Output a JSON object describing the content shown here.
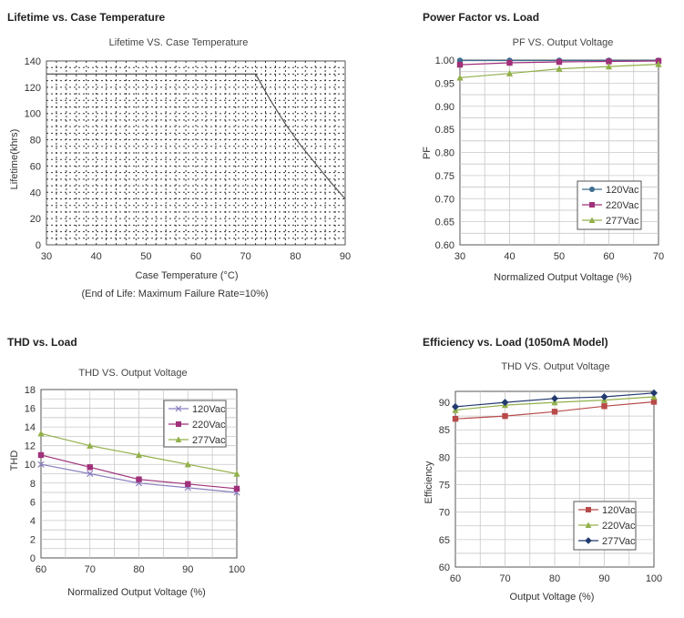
{
  "chart_data": [
    {
      "type": "line",
      "section_title": "Lifetime vs. Case Temperature",
      "title": "Lifetime VS. Case Temperature",
      "xlabel": "Case Temperature (°C)",
      "note": "(End of Life: Maximum Failure Rate=10%)",
      "ylabel": "Lifetime(khrs)",
      "xlim": [
        30,
        90
      ],
      "ylim": [
        0,
        140
      ],
      "x_ticks": [
        30,
        40,
        50,
        60,
        70,
        80,
        90
      ],
      "y_ticks": [
        0,
        20,
        40,
        60,
        80,
        100,
        120,
        140
      ],
      "series": [
        {
          "name": "Lifetime",
          "color": "#555555",
          "x": [
            30,
            72,
            75,
            78,
            81,
            84,
            87,
            90
          ],
          "y": [
            130,
            130,
            110,
            92,
            76,
            62,
            48,
            35
          ]
        }
      ],
      "legend": []
    },
    {
      "type": "line",
      "section_title": "Power Factor vs. Load",
      "title": "PF VS. Output Voltage",
      "xlabel": "Normalized Output Voltage (%)",
      "ylabel": "PF",
      "xlim": [
        30,
        70
      ],
      "ylim": [
        0.6,
        1.0
      ],
      "x_ticks": [
        30,
        40,
        50,
        60,
        70
      ],
      "y_ticks": [
        "0.60",
        "0.65",
        "0.70",
        "0.75",
        "0.80",
        "0.85",
        "0.90",
        "0.95",
        "1.00"
      ],
      "series": [
        {
          "name": "120Vac",
          "color": "#3d6e8f",
          "marker": "circle",
          "x": [
            30,
            40,
            50,
            60,
            70
          ],
          "y": [
            0.999,
            0.999,
            0.999,
            0.999,
            0.999
          ]
        },
        {
          "name": "220Vac",
          "color": "#a0307a",
          "marker": "square",
          "x": [
            30,
            40,
            50,
            60,
            70
          ],
          "y": [
            0.99,
            0.994,
            0.996,
            0.997,
            0.998
          ]
        },
        {
          "name": "277Vac",
          "color": "#92b04a",
          "marker": "triangle",
          "x": [
            30,
            40,
            50,
            60,
            70
          ],
          "y": [
            0.962,
            0.971,
            0.981,
            0.986,
            0.991
          ]
        }
      ],
      "legend": [
        "120Vac",
        "220Vac",
        "277Vac"
      ]
    },
    {
      "type": "line",
      "section_title": "THD vs. Load",
      "title": "THD VS. Output Voltage",
      "xlabel": "Normalized Output Voltage (%)",
      "ylabel": "THD",
      "xlim": [
        60,
        100
      ],
      "ylim": [
        0,
        18
      ],
      "x_ticks": [
        60,
        70,
        80,
        90,
        100
      ],
      "y_ticks": [
        0,
        2,
        4,
        6,
        8,
        10,
        12,
        14,
        16,
        18
      ],
      "series": [
        {
          "name": "120Vac",
          "color": "#8a7fc0",
          "marker": "x",
          "x": [
            60,
            70,
            80,
            90,
            100
          ],
          "y": [
            10,
            9,
            8,
            7.5,
            7
          ]
        },
        {
          "name": "220Vac",
          "color": "#a0307a",
          "marker": "square",
          "x": [
            60,
            70,
            80,
            90,
            100
          ],
          "y": [
            11,
            9.7,
            8.4,
            7.9,
            7.4
          ]
        },
        {
          "name": "277Vac",
          "color": "#92b04a",
          "marker": "triangle",
          "x": [
            60,
            70,
            80,
            90,
            100
          ],
          "y": [
            13.3,
            12,
            11,
            10,
            9
          ]
        }
      ],
      "legend": [
        "120Vac",
        "220Vac",
        "277Vac"
      ]
    },
    {
      "type": "line",
      "section_title": "Efficiency vs. Load (1050mA Model)",
      "title": "THD VS. Output Voltage",
      "xlabel": "Output Voltage (%)",
      "ylabel": "Efficiency",
      "xlim": [
        60,
        100
      ],
      "ylim": [
        60,
        92
      ],
      "x_ticks": [
        60,
        70,
        80,
        90,
        100
      ],
      "y_ticks": [
        60,
        65,
        70,
        75,
        80,
        85,
        90
      ],
      "series": [
        {
          "name": "120Vac",
          "color": "#b84a4a",
          "marker": "square",
          "x": [
            60,
            70,
            80,
            90,
            100
          ],
          "y": [
            87,
            87.5,
            88.3,
            89.3,
            90.1
          ]
        },
        {
          "name": "220Vac",
          "color": "#92b04a",
          "marker": "triangle",
          "x": [
            60,
            70,
            80,
            90,
            100
          ],
          "y": [
            88.6,
            89.5,
            90,
            90.4,
            91
          ]
        },
        {
          "name": "277Vac",
          "color": "#223a6e",
          "marker": "diamond",
          "x": [
            60,
            70,
            80,
            90,
            100
          ],
          "y": [
            89.2,
            90,
            90.7,
            91,
            91.7
          ]
        }
      ],
      "legend": [
        "120Vac",
        "220Vac",
        "277Vac"
      ]
    }
  ]
}
